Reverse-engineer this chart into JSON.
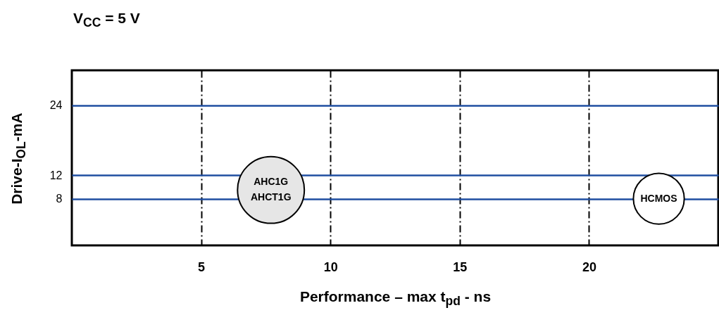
{
  "chart_data": {
    "type": "bubble",
    "title": "V$_{CC}$ = 5 V",
    "xlabel": "Performance – max t$_{pd}$ - ns",
    "ylabel": "Drive-I$_{OL}$-mA",
    "xlim": [
      0,
      25
    ],
    "xticks": [
      5,
      10,
      15,
      20
    ],
    "ylim": [
      0,
      30
    ],
    "yticks": [
      8,
      12,
      24
    ],
    "grid": true,
    "series": [
      {
        "color": "#e6e6e6",
        "x": [
          7.7
        ],
        "values": [
          9.5
        ],
        "sizes": [
          1
        ]
      },
      {
        "color": "#ffffff",
        "x": [
          22.7
        ],
        "values": [
          8
        ],
        "sizes": [
          0.58
        ]
      }
    ],
    "annotations": [
      "AHC1G",
      "AHCT1G",
      "HCMOS"
    ]
  }
}
